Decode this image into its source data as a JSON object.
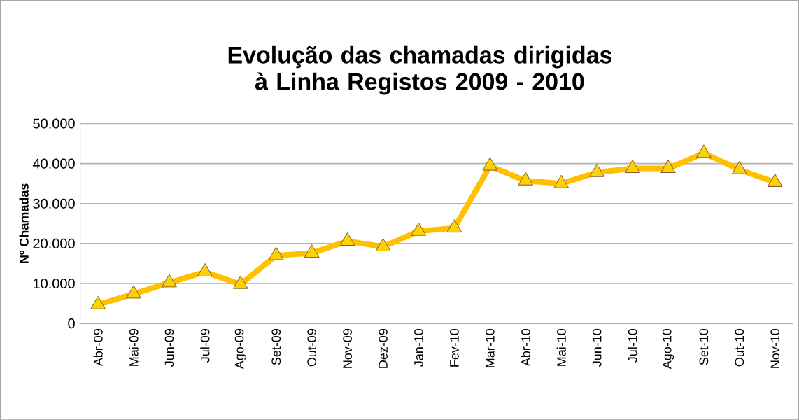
{
  "chart_data": {
    "type": "line",
    "title": "Evolução das chamadas dirigidas à Linha Registos 2009 - 2010",
    "ylabel": "Nº Chamadas",
    "categories": [
      "Abr-09",
      "Mai-09",
      "Jun-09",
      "Jul-09",
      "Ago-09",
      "Set-09",
      "Out-09",
      "Nov-09",
      "Dez-09",
      "Jan-10",
      "Fev-10",
      "Mar-10",
      "Abr-10",
      "Mai-10",
      "Jun-10",
      "Jul-10",
      "Ago-10",
      "Set-10",
      "Out-10",
      "Nov-10"
    ],
    "series": [
      {
        "color": "#ffc000",
        "values": [
          4700,
          7400,
          10200,
          12900,
          9800,
          17000,
          17600,
          20600,
          19200,
          23100,
          23900,
          39400,
          35700,
          35000,
          37800,
          38800,
          38800,
          42600,
          38500,
          35300
        ]
      }
    ],
    "ylim": [
      0,
      50000
    ],
    "yticks": [
      {
        "value": 0,
        "label": "0"
      },
      {
        "value": 10000,
        "label": "10.000"
      },
      {
        "value": 20000,
        "label": "20.000"
      },
      {
        "value": 30000,
        "label": "30.000"
      },
      {
        "value": 40000,
        "label": "40.000"
      },
      {
        "value": 50000,
        "label": "50.000"
      }
    ],
    "grid": "y",
    "marker": "triangle",
    "line_style": "solid"
  }
}
